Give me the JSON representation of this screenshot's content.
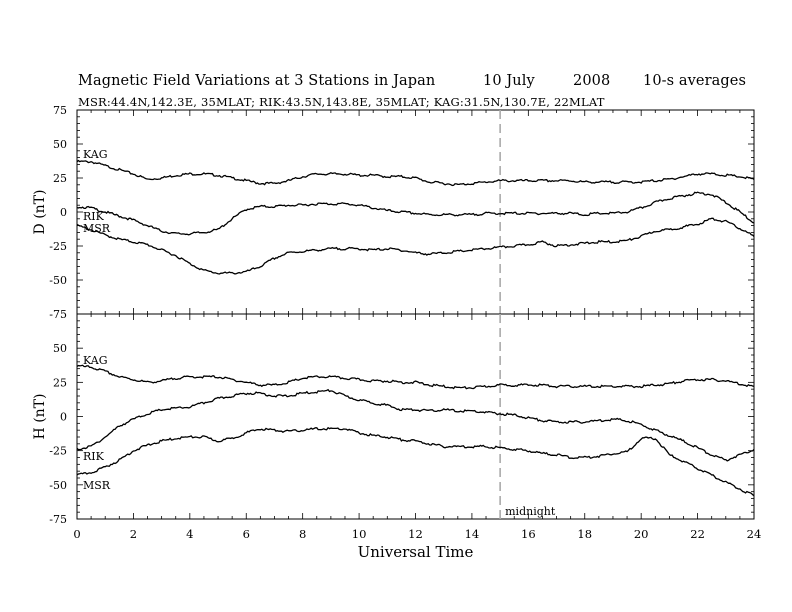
{
  "header": {
    "title": "Magnetic Field Variations at 3 Stations in Japan",
    "date": "10 July",
    "year": "2008",
    "averaging": "10-s averages",
    "stations_line": "MSR:44.4N,142.3E, 35MLAT;   RIK:43.5N,143.8E, 35MLAT;   KAG:31.5N,130.7E, 22MLAT"
  },
  "chart_data": [
    {
      "type": "line",
      "panel": "top",
      "ylabel": "D (nT)",
      "xlabel": "",
      "xlim": [
        0,
        24
      ],
      "ylim": [
        -75,
        75
      ],
      "yticks": [
        75,
        50,
        25,
        0,
        -25,
        -50,
        -75
      ],
      "xticks": [
        0,
        2,
        4,
        6,
        8,
        10,
        12,
        14,
        16,
        18,
        20,
        22,
        24
      ],
      "grid": false,
      "series": [
        {
          "name": "KAG",
          "x": [
            0,
            0.5,
            1,
            1.5,
            2,
            2.5,
            3,
            3.5,
            4,
            4.5,
            5,
            5.5,
            6,
            6.5,
            7,
            7.5,
            8,
            8.5,
            9,
            9.5,
            10,
            10.5,
            11,
            11.5,
            12,
            12.5,
            13,
            13.5,
            14,
            14.5,
            15,
            15.5,
            16,
            16.5,
            17,
            17.5,
            18,
            18.5,
            19,
            19.5,
            20,
            20.5,
            21,
            21.5,
            22,
            22.5,
            23,
            23.5,
            24
          ],
          "y": [
            37,
            37,
            34,
            31,
            28,
            24,
            25,
            27,
            28,
            28,
            27,
            25,
            23,
            21,
            21,
            23,
            26,
            28,
            28,
            28,
            27,
            27,
            26,
            26,
            25,
            22,
            21,
            20,
            21,
            22,
            23,
            23,
            23,
            23,
            23,
            23,
            22,
            22,
            22,
            22,
            22,
            23,
            24,
            26,
            28,
            28,
            27,
            26,
            24
          ]
        },
        {
          "name": "RIK",
          "x": [
            0,
            0.5,
            1,
            1.5,
            2,
            2.5,
            3,
            3.5,
            4,
            4.5,
            5,
            5.5,
            6,
            6.5,
            7,
            7.5,
            8,
            8.5,
            9,
            9.5,
            10,
            10.5,
            11,
            11.5,
            12,
            12.5,
            13,
            13.5,
            14,
            14.5,
            15,
            15.5,
            16,
            16.5,
            17,
            17.5,
            18,
            18.5,
            19,
            19.5,
            20,
            20.5,
            21,
            21.5,
            22,
            22.5,
            23,
            23.5,
            24
          ],
          "y": [
            4,
            3,
            0,
            -3,
            -6,
            -10,
            -14,
            -16,
            -16,
            -15,
            -13,
            -5,
            2,
            4,
            4,
            5,
            5,
            6,
            6,
            6,
            5,
            3,
            1,
            0,
            -1,
            -2,
            -2,
            -2,
            -2,
            -1,
            -1,
            -1,
            -1,
            -1,
            -1,
            -1,
            -2,
            -1,
            -1,
            0,
            3,
            7,
            10,
            12,
            14,
            13,
            7,
            0,
            -8
          ]
        },
        {
          "name": "MSR",
          "x": [
            0,
            0.5,
            1,
            1.5,
            2,
            2.5,
            3,
            3.5,
            4,
            4.5,
            5,
            5.5,
            6,
            6.5,
            7,
            7.5,
            8,
            8.5,
            9,
            9.5,
            10,
            10.5,
            11,
            11.5,
            12,
            12.5,
            13,
            13.5,
            14,
            14.5,
            15,
            15.5,
            16,
            16.5,
            17,
            17.5,
            18,
            18.5,
            19,
            19.5,
            20,
            20.5,
            21,
            21.5,
            22,
            22.5,
            23,
            23.5,
            24
          ],
          "y": [
            -10,
            -13,
            -17,
            -20,
            -22,
            -24,
            -28,
            -32,
            -38,
            -43,
            -45,
            -45,
            -44,
            -40,
            -34,
            -30,
            -29,
            -28,
            -27,
            -27,
            -27,
            -28,
            -27,
            -28,
            -30,
            -31,
            -30,
            -29,
            -28,
            -27,
            -26,
            -25,
            -24,
            -22,
            -25,
            -24,
            -23,
            -22,
            -22,
            -21,
            -18,
            -14,
            -13,
            -11,
            -9,
            -5,
            -7,
            -12,
            -18
          ]
        }
      ]
    },
    {
      "type": "line",
      "panel": "bottom",
      "ylabel": "H (nT)",
      "xlabel": "Universal Time",
      "xlim": [
        0,
        24
      ],
      "ylim": [
        -75,
        75
      ],
      "yticks": [
        50,
        25,
        0,
        -25,
        -50,
        -75
      ],
      "xticks": [
        0,
        2,
        4,
        6,
        8,
        10,
        12,
        14,
        16,
        18,
        20,
        22,
        24
      ],
      "grid": false,
      "annotations": [
        {
          "x": 15,
          "text": "midnight"
        }
      ],
      "series": [
        {
          "name": "KAG",
          "x": [
            0,
            0.5,
            1,
            1.5,
            2,
            2.5,
            3,
            3.5,
            4,
            4.5,
            5,
            5.5,
            6,
            6.5,
            7,
            7.5,
            8,
            8.5,
            9,
            9.5,
            10,
            10.5,
            11,
            11.5,
            12,
            12.5,
            13,
            13.5,
            14,
            14.5,
            15,
            15.5,
            16,
            16.5,
            17,
            17.5,
            18,
            18.5,
            19,
            19.5,
            20,
            20.5,
            21,
            21.5,
            22,
            22.5,
            23,
            23.5,
            24
          ],
          "y": [
            37,
            36,
            33,
            29,
            27,
            25,
            26,
            28,
            29,
            29,
            29,
            27,
            25,
            23,
            23,
            25,
            28,
            29,
            29,
            28,
            27,
            26,
            26,
            25,
            25,
            23,
            22,
            21,
            21,
            22,
            23,
            23,
            23,
            23,
            22,
            22,
            22,
            22,
            22,
            22,
            22,
            23,
            24,
            26,
            27,
            27,
            26,
            24,
            22
          ]
        },
        {
          "name": "RIK",
          "x": [
            0,
            0.5,
            1,
            1.5,
            2,
            2.5,
            3,
            3.5,
            4,
            4.5,
            5,
            5.5,
            6,
            6.5,
            7,
            7.5,
            8,
            8.5,
            9,
            9.5,
            10,
            10.5,
            11,
            11.5,
            12,
            12.5,
            13,
            13.5,
            14,
            14.5,
            15,
            15.5,
            16,
            16.5,
            17,
            17.5,
            18,
            18.5,
            19,
            19.5,
            20,
            20.5,
            21,
            21.5,
            22,
            22.5,
            23,
            23.5,
            24
          ],
          "y": [
            -24,
            -22,
            -15,
            -7,
            -2,
            2,
            5,
            6,
            7,
            10,
            13,
            15,
            17,
            17,
            15,
            15,
            17,
            18,
            19,
            15,
            12,
            10,
            8,
            5,
            5,
            4,
            5,
            4,
            4,
            3,
            2,
            1,
            -1,
            -3,
            -4,
            -4,
            -4,
            -3,
            -2,
            -3,
            -6,
            -10,
            -14,
            -18,
            -23,
            -28,
            -32,
            -28,
            -24
          ]
        },
        {
          "name": "MSR",
          "x": [
            0,
            0.5,
            1,
            1.5,
            2,
            2.5,
            3,
            3.5,
            4,
            4.5,
            5,
            5.5,
            6,
            6.5,
            7,
            7.5,
            8,
            8.5,
            9,
            9.5,
            10,
            10.5,
            11,
            11.5,
            12,
            12.5,
            13,
            13.5,
            14,
            14.5,
            15,
            15.5,
            16,
            16.5,
            17,
            17.5,
            18,
            18.5,
            19,
            19.5,
            20,
            20.5,
            21,
            21.5,
            22,
            22.5,
            23,
            23.5,
            24
          ],
          "y": [
            -43,
            -41,
            -37,
            -32,
            -25,
            -21,
            -18,
            -16,
            -15,
            -15,
            -18,
            -16,
            -12,
            -9,
            -10,
            -11,
            -10,
            -9,
            -9,
            -9,
            -12,
            -14,
            -15,
            -17,
            -18,
            -20,
            -22,
            -22,
            -22,
            -22,
            -23,
            -24,
            -25,
            -27,
            -28,
            -30,
            -30,
            -29,
            -27,
            -26,
            -16,
            -16,
            -28,
            -33,
            -38,
            -43,
            -48,
            -53,
            -58
          ]
        }
      ]
    }
  ]
}
